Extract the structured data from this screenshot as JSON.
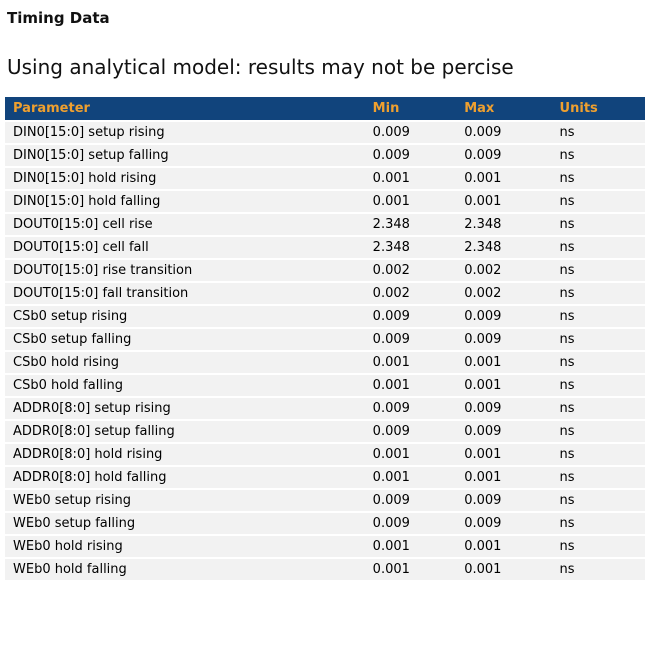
{
  "page": {
    "title": "Timing Data",
    "subtitle": "Using analytical model: results may not be percise"
  },
  "table": {
    "columns": [
      "Parameter",
      "Min",
      "Max",
      "Units"
    ],
    "rows": [
      {
        "parameter": "DIN0[15:0] setup rising",
        "min": "0.009",
        "max": "0.009",
        "units": "ns"
      },
      {
        "parameter": "DIN0[15:0] setup falling",
        "min": "0.009",
        "max": "0.009",
        "units": "ns"
      },
      {
        "parameter": "DIN0[15:0] hold rising",
        "min": "0.001",
        "max": "0.001",
        "units": "ns"
      },
      {
        "parameter": "DIN0[15:0] hold falling",
        "min": "0.001",
        "max": "0.001",
        "units": "ns"
      },
      {
        "parameter": "DOUT0[15:0] cell rise",
        "min": "2.348",
        "max": "2.348",
        "units": "ns"
      },
      {
        "parameter": "DOUT0[15:0] cell fall",
        "min": "2.348",
        "max": "2.348",
        "units": "ns"
      },
      {
        "parameter": "DOUT0[15:0] rise transition",
        "min": "0.002",
        "max": "0.002",
        "units": "ns"
      },
      {
        "parameter": "DOUT0[15:0] fall transition",
        "min": "0.002",
        "max": "0.002",
        "units": "ns"
      },
      {
        "parameter": "CSb0 setup rising",
        "min": "0.009",
        "max": "0.009",
        "units": "ns"
      },
      {
        "parameter": "CSb0 setup falling",
        "min": "0.009",
        "max": "0.009",
        "units": "ns"
      },
      {
        "parameter": "CSb0 hold rising",
        "min": "0.001",
        "max": "0.001",
        "units": "ns"
      },
      {
        "parameter": "CSb0 hold falling",
        "min": "0.001",
        "max": "0.001",
        "units": "ns"
      },
      {
        "parameter": "ADDR0[8:0] setup rising",
        "min": "0.009",
        "max": "0.009",
        "units": "ns"
      },
      {
        "parameter": "ADDR0[8:0] setup falling",
        "min": "0.009",
        "max": "0.009",
        "units": "ns"
      },
      {
        "parameter": "ADDR0[8:0] hold rising",
        "min": "0.001",
        "max": "0.001",
        "units": "ns"
      },
      {
        "parameter": "ADDR0[8:0] hold falling",
        "min": "0.001",
        "max": "0.001",
        "units": "ns"
      },
      {
        "parameter": "WEb0 setup rising",
        "min": "0.009",
        "max": "0.009",
        "units": "ns"
      },
      {
        "parameter": "WEb0 setup falling",
        "min": "0.009",
        "max": "0.009",
        "units": "ns"
      },
      {
        "parameter": "WEb0 hold rising",
        "min": "0.001",
        "max": "0.001",
        "units": "ns"
      },
      {
        "parameter": "WEb0 hold falling",
        "min": "0.001",
        "max": "0.001",
        "units": "ns"
      }
    ]
  },
  "colors": {
    "header_bg": "#11447c",
    "header_text": "#efa02f",
    "row_bg": "#f2f2f2",
    "row_text": "#000000",
    "page_bg": "#ffffff"
  }
}
